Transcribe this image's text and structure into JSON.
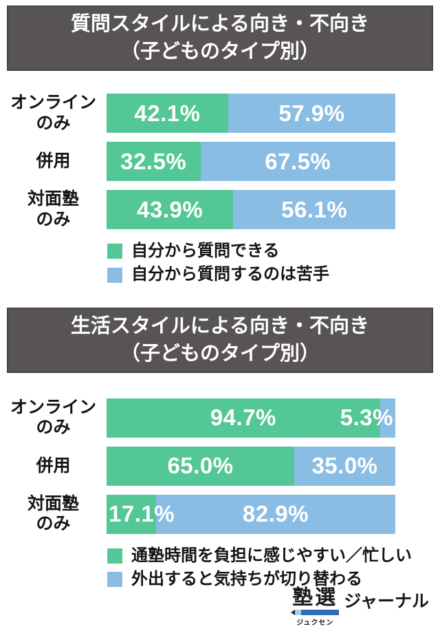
{
  "colors": {
    "green": "#53c795",
    "blue": "#8abde4",
    "banner_bg": "#575357",
    "bar_text": "#ffffff"
  },
  "logo": {
    "main": "塾選",
    "furigana": "ジュクセン",
    "suffix": "ジャーナル"
  },
  "chart_data": [
    {
      "type": "bar",
      "stacked": true,
      "orientation": "horizontal",
      "unit": "%",
      "xlim": [
        0,
        100
      ],
      "legend_position": "bottom",
      "title_line1": "質問スタイルによる向き・不向き",
      "title_line2": "（子どものタイプ別）",
      "categories": [
        "オンライン\nのみ",
        "併用",
        "対面塾\nのみ"
      ],
      "series": [
        {
          "name": "自分から質問できる",
          "color": "green",
          "values": [
            42.1,
            32.5,
            43.9
          ]
        },
        {
          "name": "自分から質問するのは苦手",
          "color": "blue",
          "values": [
            57.9,
            67.5,
            56.1
          ]
        }
      ]
    },
    {
      "type": "bar",
      "stacked": true,
      "orientation": "horizontal",
      "unit": "%",
      "xlim": [
        0,
        100
      ],
      "legend_position": "bottom",
      "title_line1": "生活スタイルによる向き・不向き",
      "title_line2": "（子どものタイプ別）",
      "categories": [
        "オンライン\nのみ",
        "併用",
        "対面塾\nのみ"
      ],
      "series": [
        {
          "name": "通塾時間を負担に感じやすい／忙しい",
          "color": "green",
          "values": [
            94.7,
            65.0,
            17.1
          ]
        },
        {
          "name": "外出すると気持ちが切り替わる",
          "color": "blue",
          "values": [
            5.3,
            35.0,
            82.9
          ]
        }
      ]
    }
  ]
}
